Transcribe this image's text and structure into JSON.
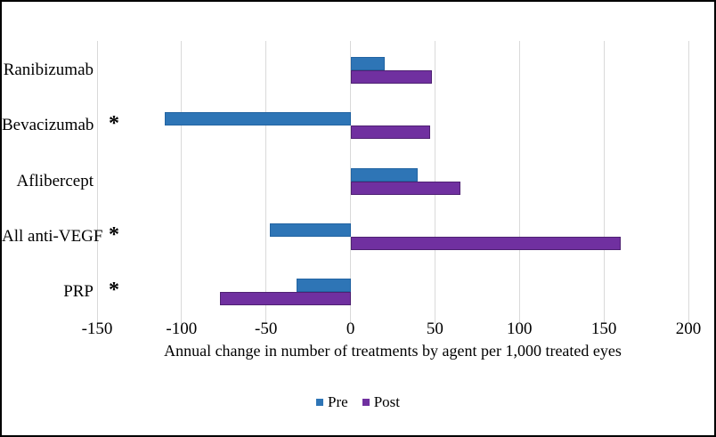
{
  "figure": {
    "background": "#ffffff",
    "border_color": "#000000"
  },
  "chart_data": {
    "type": "bar",
    "orientation": "horizontal",
    "title": "",
    "xlabel": "Annual change in number of treatments by agent per 1,000 treated eyes",
    "ylabel": "",
    "categories": [
      "Ranibizumab",
      "Bevacizumab",
      "Aflibercept",
      "All anti-VEGF",
      "PRP"
    ],
    "series": [
      {
        "name": "Pre",
        "color": "#2e75b6",
        "border_color": "#2264a2",
        "values": [
          20,
          -110,
          40,
          -48,
          -32
        ]
      },
      {
        "name": "Post",
        "color": "#7030a0",
        "border_color": "#4f2173",
        "values": [
          48,
          47,
          65,
          160,
          -77
        ]
      }
    ],
    "significance_markers": {
      "symbol": "*",
      "categories": [
        "Bevacizumab",
        "All anti-VEGF",
        "PRP"
      ]
    },
    "xlim": [
      -150,
      200
    ],
    "xticks": [
      -150,
      -100,
      -50,
      0,
      50,
      100,
      150,
      200
    ],
    "grid": true,
    "gridline_color": "#d9d9d9",
    "legend_position": "bottom"
  },
  "legend": {
    "items": [
      {
        "label": "Pre",
        "color": "#2e75b6"
      },
      {
        "label": "Post",
        "color": "#7030a0"
      }
    ]
  }
}
